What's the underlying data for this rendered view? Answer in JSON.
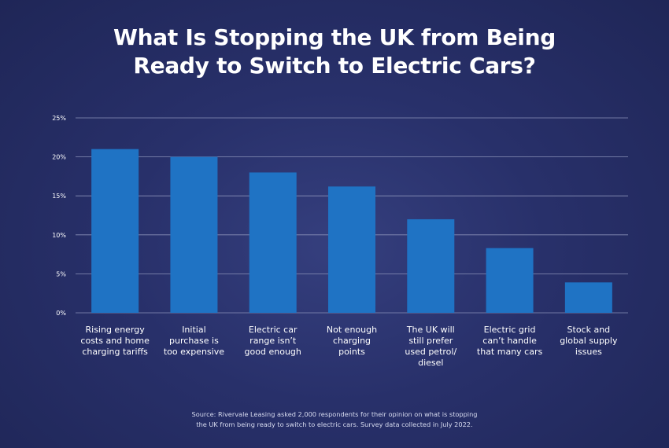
{
  "title": {
    "line1": "What Is Stopping the UK from Being",
    "line2": "Ready to Switch to Electric Cars?"
  },
  "source": {
    "line1": "Source: Rivervale Leasing asked 2,000 respondents for their opinion on what is stopping",
    "line2": "the UK from being ready to switch to electric cars. Survey data collected in July 2022."
  },
  "colors": {
    "background": "#28306a",
    "bar": "#1f73c4",
    "gridline": "#8a91b8",
    "text": "#ffffff"
  },
  "chart_data": {
    "type": "bar",
    "title": "What Is Stopping the UK from Being Ready to Switch to Electric Cars?",
    "categories": [
      [
        "Rising energy",
        "costs and home",
        "charging tariffs"
      ],
      [
        "Initial",
        "purchase is",
        "too expensive"
      ],
      [
        "Electric car",
        "range isn’t",
        "good enough"
      ],
      [
        "Not enough",
        "charging",
        "points"
      ],
      [
        "The UK will",
        "still prefer",
        "used petrol/",
        "diesel"
      ],
      [
        "Electric grid",
        "can’t handle",
        "that many cars"
      ],
      [
        "Stock and",
        "global supply",
        "issues"
      ]
    ],
    "values": [
      21,
      20,
      18,
      16.2,
      12,
      8.3,
      3.9
    ],
    "ylim": [
      0,
      25
    ],
    "yticks": [
      0,
      5,
      10,
      15,
      20,
      25
    ],
    "ytick_labels": [
      "0%",
      "5%",
      "10%",
      "15%",
      "20%",
      "25%"
    ],
    "grid": true,
    "legend": "none"
  }
}
